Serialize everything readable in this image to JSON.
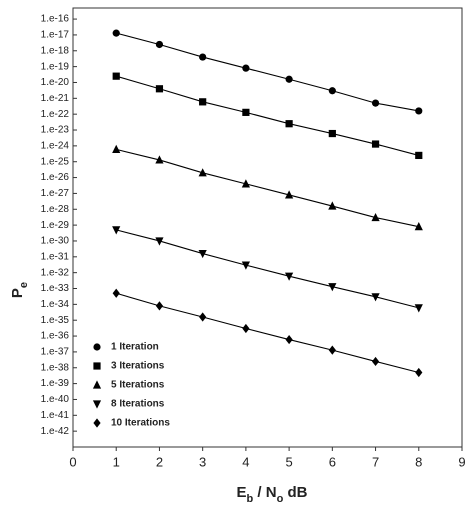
{
  "chart_data": {
    "type": "line",
    "ylabel": [
      {
        "text": "P"
      },
      {
        "text": "e",
        "sub": true
      }
    ],
    "xlabel": [
      {
        "text": "E"
      },
      {
        "text": "b",
        "sub": true
      },
      {
        "text": " / N"
      },
      {
        "text": "o",
        "sub": true
      },
      {
        "text": "     dB"
      }
    ],
    "x": [
      1,
      2,
      3,
      4,
      5,
      6,
      7,
      8
    ],
    "xlim": [
      0,
      9
    ],
    "xticks": [
      0,
      1,
      2,
      3,
      4,
      5,
      6,
      7,
      8,
      9
    ],
    "ylim": [
      1e-43,
      5e-16
    ],
    "log_y": true,
    "yticks": [
      {
        "value": 1e-16,
        "label": "1.e-16"
      },
      {
        "value": 1e-17,
        "label": "1.e-17"
      },
      {
        "value": 1e-18,
        "label": "1.e-18"
      },
      {
        "value": 1e-19,
        "label": "1.e-19"
      },
      {
        "value": 1e-20,
        "label": "1.e-20"
      },
      {
        "value": 1e-21,
        "label": "1.e-21"
      },
      {
        "value": 1e-22,
        "label": "1.e-22"
      },
      {
        "value": 1e-23,
        "label": "1.e-23"
      },
      {
        "value": 1e-24,
        "label": "1.e-24"
      },
      {
        "value": 1e-25,
        "label": "1.e-25"
      },
      {
        "value": 1e-26,
        "label": "1.e-26"
      },
      {
        "value": 1e-27,
        "label": "1.e-27"
      },
      {
        "value": 1e-28,
        "label": "1.e-28"
      },
      {
        "value": 1e-29,
        "label": "1.e-29"
      },
      {
        "value": 1e-30,
        "label": "1.e-30"
      },
      {
        "value": 1e-31,
        "label": "1.e-31"
      },
      {
        "value": 1e-32,
        "label": "1.e-32"
      },
      {
        "value": 1e-33,
        "label": "1.e-33"
      },
      {
        "value": 1e-34,
        "label": "1.e-34"
      },
      {
        "value": 1e-35,
        "label": "1.e-35"
      },
      {
        "value": 1e-36,
        "label": "1.e-36"
      },
      {
        "value": 1e-37,
        "label": "1.e-37"
      },
      {
        "value": 1e-38,
        "label": "1.e-38"
      },
      {
        "value": 1e-39,
        "label": "1.e-39"
      },
      {
        "value": 1e-40,
        "label": "1.e-40"
      },
      {
        "value": 1e-41,
        "label": "1.e-41"
      },
      {
        "value": 1e-42,
        "label": "1.e-42"
      }
    ],
    "grid": false,
    "legend": "lower left",
    "series": [
      {
        "name": "1 Iteration",
        "color": "#000000",
        "marker": "circle",
        "values": [
          1.3e-17,
          2.5e-18,
          4e-19,
          8e-20,
          1.6e-20,
          3e-21,
          5e-22,
          1.6e-22
        ]
      },
      {
        "name": "3 Iterations",
        "color": "#000000",
        "marker": "square",
        "values": [
          2.5e-20,
          4e-21,
          6e-22,
          1.3e-22,
          2.5e-23,
          6e-24,
          1.3e-24,
          2.5e-25
        ]
      },
      {
        "name": "5 Iterations",
        "color": "#000000",
        "marker": "triangle-up",
        "values": [
          6e-25,
          1.3e-25,
          2e-26,
          4e-27,
          8e-28,
          1.6e-28,
          3e-29,
          8e-30
        ]
      },
      {
        "name": "8 Iterations",
        "color": "#000000",
        "marker": "triangle-down",
        "values": [
          5e-30,
          1e-30,
          1.6e-31,
          3e-32,
          6e-33,
          1.3e-33,
          3e-34,
          6e-35
        ]
      },
      {
        "name": "10 Iterations",
        "color": "#000000",
        "marker": "diamond",
        "values": [
          5e-34,
          8e-35,
          1.6e-35,
          3e-36,
          6e-37,
          1.3e-37,
          2.5e-38,
          5e-39
        ]
      }
    ]
  }
}
